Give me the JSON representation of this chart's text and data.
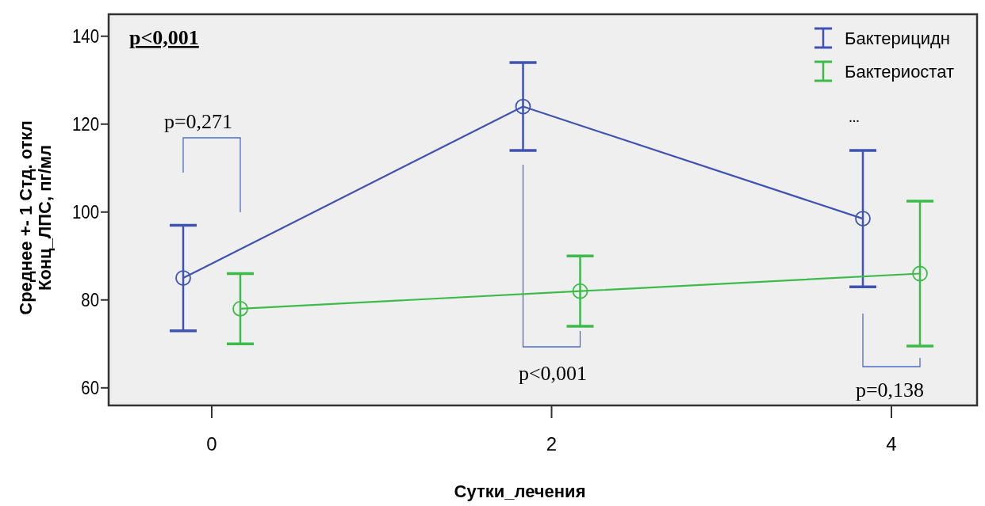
{
  "chart_data": {
    "type": "line",
    "xlabel": "Сутки_лечения",
    "ylabel": "Среднее +- 1 Стд. откл\nКонц_ЛПС, пг/мл",
    "categories": [
      "0",
      "2",
      "4"
    ],
    "series": [
      {
        "name": "Бактерицидн",
        "color": "#4053b0",
        "values": [
          85,
          124,
          98.5
        ],
        "errors": [
          12,
          10,
          15.5
        ]
      },
      {
        "name": "Бактериостат",
        "color": "#3dbb4a",
        "values": [
          78,
          82,
          86
        ],
        "errors": [
          8,
          8,
          16.5
        ]
      }
    ],
    "ylim": [
      56,
      145
    ],
    "yticks": [
      60,
      80,
      100,
      120,
      140
    ],
    "grid": false,
    "legend": "top right",
    "marker": "circle",
    "line_style": "solid",
    "annotations": [
      "p<0,001",
      "p=0,271",
      "p<0,001",
      "p=0,138",
      "..."
    ]
  }
}
